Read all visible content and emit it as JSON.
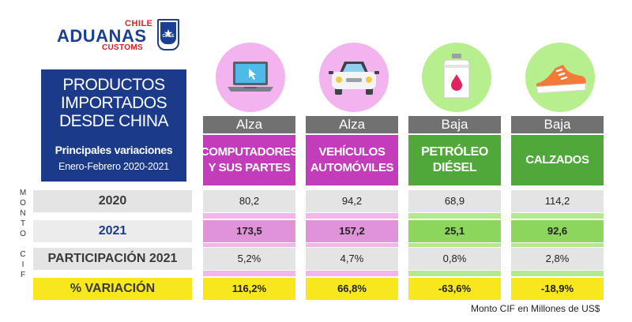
{
  "logo": {
    "top": "CHILE",
    "main": "ADUANAS",
    "bottom": "CUSTOMS",
    "badge_text": "CHILE"
  },
  "title": {
    "line1": "PRODUCTOS",
    "line2": "IMPORTADOS",
    "line3": "DESDE CHINA",
    "subtitle": "Principales variaciones",
    "period": "Enero-Febrero 2020-2021"
  },
  "vertical_label": [
    "M",
    "O",
    "N",
    "T",
    "O",
    "",
    "C",
    "I",
    "F"
  ],
  "columns": [
    {
      "trend": "Alza",
      "name_line1": "COMPUTADORES",
      "name_line2": "Y SUS PARTES",
      "icon": "laptop-icon",
      "color": "#c33dbb"
    },
    {
      "trend": "Alza",
      "name_line1": "VEHÍCULOS",
      "name_line2": "AUTOMÓVILES",
      "icon": "car-icon",
      "color": "#c33dbb"
    },
    {
      "trend": "Baja",
      "name_line1": "PETRÓLEO",
      "name_line2": "DIÉSEL",
      "icon": "fuel-can-icon",
      "color": "#50a83a"
    },
    {
      "trend": "Baja",
      "name_line1": "CALZADOS",
      "name_line2": "",
      "icon": "shoe-icon",
      "color": "#50a83a"
    }
  ],
  "rows": [
    {
      "label": "2020",
      "values": [
        "80,2",
        "94,2",
        "68,9",
        "114,2"
      ]
    },
    {
      "label": "2021",
      "values": [
        "173,5",
        "157,2",
        "25,1",
        "92,6"
      ]
    },
    {
      "label": "PARTICIPACIÓN 2021",
      "values": [
        "5,2%",
        "4,7%",
        "0,8%",
        "2,8%"
      ]
    },
    {
      "label": "% VARIACIÓN",
      "values": [
        "116,2%",
        "66,8%",
        "-63,6%",
        "-18,9%"
      ]
    }
  ],
  "footnote": "Monto CIF en Millones de US$",
  "colors": {
    "navy": "#1c3a8a",
    "pink": "#c33dbb",
    "green": "#50a83a",
    "yellow": "#f8e71c",
    "red": "#d2232a"
  }
}
